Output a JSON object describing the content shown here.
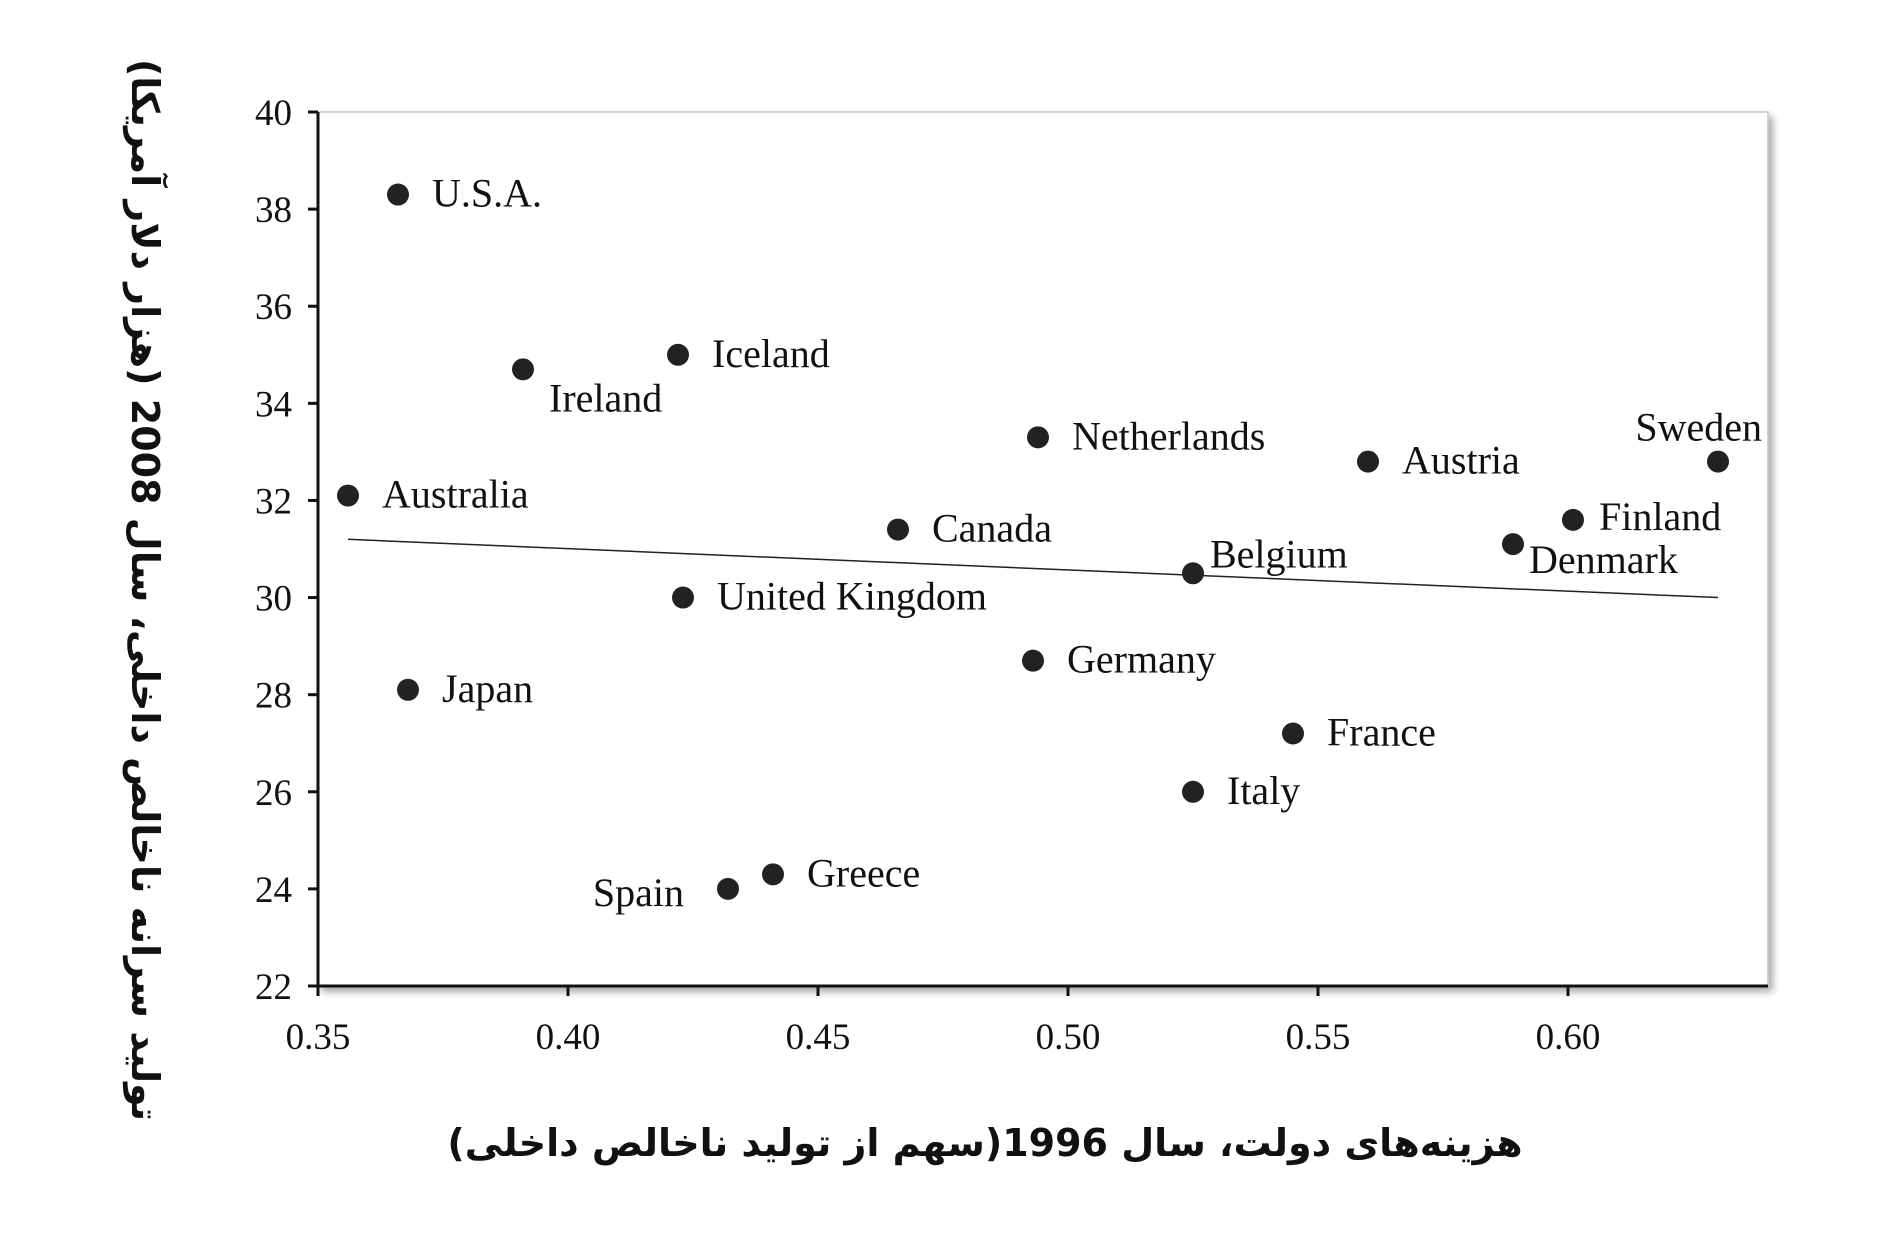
{
  "chart_data": {
    "type": "scatter",
    "title": "",
    "xlabel": "هزینه‌های دولت، سال 1996(سهم از تولید ناخالص داخلی)",
    "ylabel": "تولید سرانه ناخالص داخلی، سال 2008 (هزار دلار آمریکا)",
    "xlim": [
      0.35,
      0.64
    ],
    "ylim": [
      22,
      40
    ],
    "xticks": [
      "0.35",
      "0.40",
      "0.45",
      "0.50",
      "0.55",
      "0.60"
    ],
    "yticks": [
      "22",
      "24",
      "26",
      "28",
      "30",
      "32",
      "34",
      "36",
      "38",
      "40"
    ],
    "grid": false,
    "legend": "none",
    "marker_color": "#222222",
    "points": [
      {
        "label": "U.S.A.",
        "x": 0.366,
        "y": 38.3
      },
      {
        "label": "Iceland",
        "x": 0.422,
        "y": 35.0
      },
      {
        "label": "Ireland",
        "x": 0.391,
        "y": 34.7
      },
      {
        "label": "Netherlands",
        "x": 0.494,
        "y": 33.3
      },
      {
        "label": "Austria",
        "x": 0.56,
        "y": 32.8
      },
      {
        "label": "Sweden",
        "x": 0.63,
        "y": 32.8
      },
      {
        "label": "Australia",
        "x": 0.356,
        "y": 32.1
      },
      {
        "label": "Finland",
        "x": 0.601,
        "y": 31.6
      },
      {
        "label": "Canada",
        "x": 0.466,
        "y": 31.4
      },
      {
        "label": "Denmark",
        "x": 0.589,
        "y": 31.1
      },
      {
        "label": "Belgium",
        "x": 0.525,
        "y": 30.5
      },
      {
        "label": "United Kingdom",
        "x": 0.423,
        "y": 30.0
      },
      {
        "label": "Germany",
        "x": 0.493,
        "y": 28.7
      },
      {
        "label": "Japan",
        "x": 0.368,
        "y": 28.1
      },
      {
        "label": "France",
        "x": 0.545,
        "y": 27.2
      },
      {
        "label": "Italy",
        "x": 0.525,
        "y": 26.0
      },
      {
        "label": "Greece",
        "x": 0.441,
        "y": 24.3
      },
      {
        "label": "Spain",
        "x": 0.432,
        "y": 24.0
      }
    ],
    "trendline": {
      "x": [
        0.356,
        0.63
      ],
      "y": [
        31.2,
        30.0
      ]
    }
  }
}
